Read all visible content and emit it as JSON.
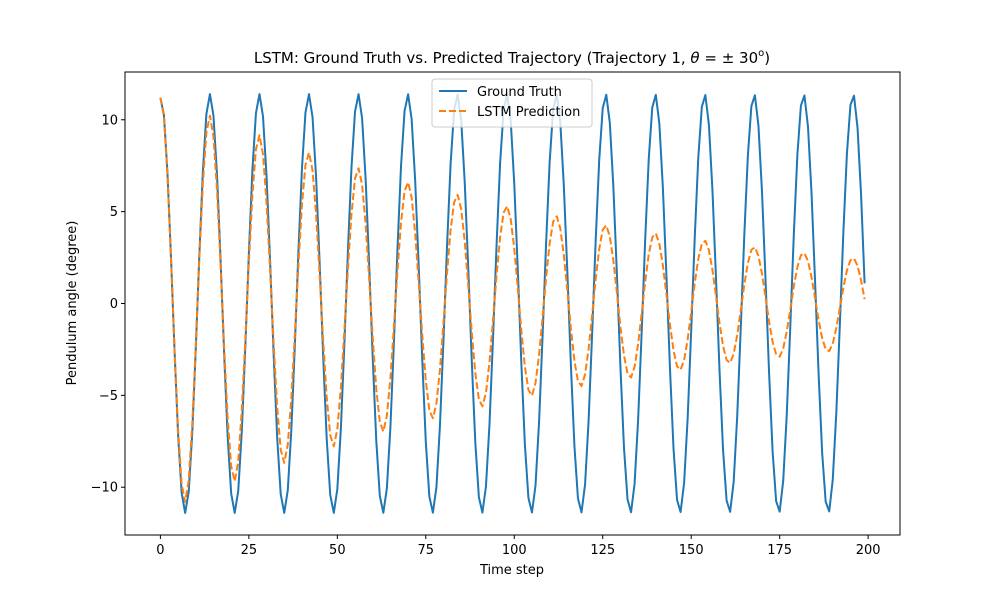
{
  "chart_data": {
    "type": "line",
    "title": "LSTM: Ground Truth vs. Predicted Trajectory (Trajectory 1, θ = ± 30°)",
    "title_parts": {
      "prefix": "LSTM: Ground Truth vs. Predicted Trajectory (Trajectory 1, ",
      "theta": "θ",
      "equals": " = ± 30",
      "degree": "o",
      "suffix": ")"
    },
    "xlabel": "Time step",
    "ylabel": "Pendulum angle (degree)",
    "xlim": [
      -10,
      209
    ],
    "ylim": [
      -12.6,
      12.6
    ],
    "xticks": [
      0,
      25,
      50,
      75,
      100,
      125,
      150,
      175,
      200
    ],
    "yticks": [
      -10,
      -5,
      0,
      5,
      10
    ],
    "xtick_labels": [
      "0",
      "25",
      "50",
      "75",
      "100",
      "125",
      "150",
      "175",
      "200"
    ],
    "ytick_labels": [
      "−10",
      "−5",
      "0",
      "5",
      "10"
    ],
    "legend_position": "upper-center",
    "grid": false,
    "series": [
      {
        "name": "Ground Truth",
        "color": "#1f77b4",
        "style": "solid",
        "model": {
          "amplitude": 11.4,
          "period": 13.98,
          "t_start": 0,
          "t_end": 199,
          "step": 1,
          "initial_value": 11.2,
          "amplitude_decay_per_step": 0.0
        }
      },
      {
        "name": "LSTM Prediction",
        "color": "#ff7f0e",
        "style": "dashed",
        "model": {
          "amplitude": 11.4,
          "period": 13.98,
          "t_start": 0,
          "t_end": 199,
          "step": 1,
          "initial_value": 11.2,
          "amplitude_decay_per_step": 0.0078
        }
      }
    ]
  }
}
